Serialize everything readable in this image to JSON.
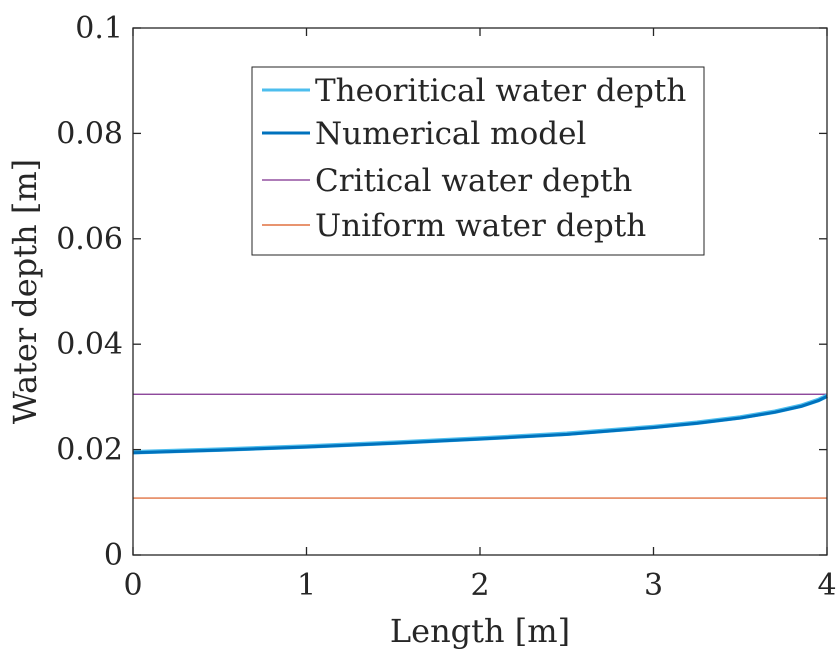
{
  "chart_data": {
    "type": "line",
    "xlabel": "Length [m]",
    "ylabel": "Water depth [m]",
    "xlim": [
      0,
      4
    ],
    "ylim": [
      0,
      0.1
    ],
    "xticks": [
      0,
      1,
      2,
      3,
      4
    ],
    "xtick_labels": [
      "0",
      "1",
      "2",
      "3",
      "4"
    ],
    "yticks": [
      0,
      0.02,
      0.04,
      0.06,
      0.08,
      0.1
    ],
    "ytick_labels": [
      "0",
      "0.02",
      "0.04",
      "0.06",
      "0.08",
      "0.1"
    ],
    "grid": false,
    "legend_position": "top-center",
    "series": [
      {
        "name": "Theoritical water depth",
        "color": "#4DBEEE",
        "x": [
          0,
          0.5,
          1,
          1.5,
          2,
          2.5,
          3,
          3.25,
          3.5,
          3.7,
          3.85,
          3.95,
          4
        ],
        "y": [
          0.0195,
          0.02,
          0.0206,
          0.0213,
          0.0221,
          0.023,
          0.0243,
          0.0251,
          0.0261,
          0.0272,
          0.0283,
          0.0294,
          0.0302
        ]
      },
      {
        "name": "Numerical model",
        "color": "#0072BD",
        "x": [
          0,
          0.5,
          1,
          1.5,
          2,
          2.5,
          3,
          3.25,
          3.5,
          3.7,
          3.85,
          3.95,
          4
        ],
        "y": [
          0.0194,
          0.0199,
          0.0205,
          0.0212,
          0.022,
          0.0229,
          0.0242,
          0.025,
          0.026,
          0.0271,
          0.0282,
          0.0293,
          0.0301
        ]
      },
      {
        "name": "Critical water depth",
        "color": "#7E2F8E",
        "x": [
          0,
          4
        ],
        "y": [
          0.0305,
          0.0305
        ]
      },
      {
        "name": "Uniform water depth",
        "color": "#D95319",
        "x": [
          0,
          4
        ],
        "y": [
          0.0108,
          0.0108
        ]
      }
    ]
  }
}
